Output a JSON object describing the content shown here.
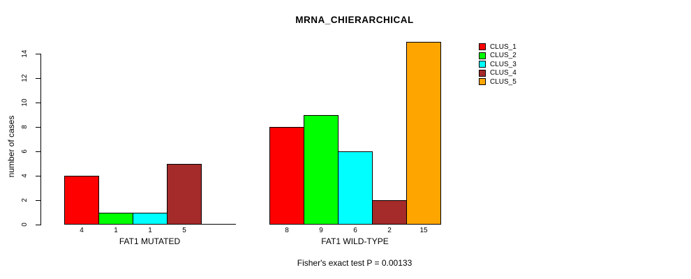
{
  "title": "MRNA_CHIERARCHICAL",
  "footer": "Fisher's exact test P = 0.00133",
  "legend": {
    "items": [
      {
        "label": "CLUS_1",
        "color": "#FF0000"
      },
      {
        "label": "CLUS_2",
        "color": "#00FF00"
      },
      {
        "label": "CLUS_3",
        "color": "#00FFFF"
      },
      {
        "label": "CLUS_4",
        "color": "#A52A2A"
      },
      {
        "label": "CLUS_5",
        "color": "#FFA500"
      }
    ]
  },
  "chart_data": {
    "type": "bar",
    "title": "MRNA_CHIERARCHICAL",
    "xlabel": "",
    "ylabel": "number of cases",
    "ylim": [
      0,
      15
    ],
    "yticks": [
      0,
      2,
      4,
      6,
      8,
      10,
      12,
      14
    ],
    "grid": false,
    "legend_position": "right",
    "categories": [
      "FAT1 MUTATED",
      "FAT1 WILD-TYPE"
    ],
    "series": [
      {
        "name": "CLUS_1",
        "color": "#FF0000",
        "values": [
          4,
          8
        ]
      },
      {
        "name": "CLUS_2",
        "color": "#00FF00",
        "values": [
          1,
          9
        ]
      },
      {
        "name": "CLUS_3",
        "color": "#00FFFF",
        "values": [
          1,
          6
        ]
      },
      {
        "name": "CLUS_4",
        "color": "#A52A2A",
        "values": [
          5,
          2
        ]
      },
      {
        "name": "CLUS_5",
        "color": "#FFA500",
        "values": [
          0,
          15
        ]
      }
    ],
    "bar_value_labels": [
      [
        "4",
        "1",
        "1",
        "5",
        ""
      ],
      [
        "8",
        "9",
        "6",
        "2",
        "15"
      ]
    ],
    "annotation": "Fisher's exact test P = 0.00133"
  }
}
